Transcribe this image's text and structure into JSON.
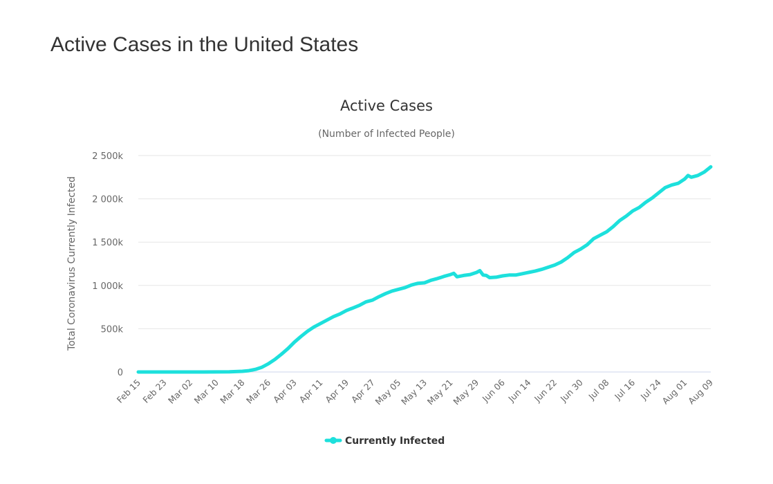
{
  "page_title": "Active Cases in the United States",
  "chart_data": {
    "type": "line",
    "title": "Active Cases",
    "subtitle": "(Number of Infected People)",
    "ylabel": "Total Coronavirus Currently Infected",
    "xlabel": "",
    "x_start": "Feb 15",
    "x_range_days": [
      0,
      176
    ],
    "ylim": [
      0,
      2500000
    ],
    "y_ticks": [
      0,
      500000,
      1000000,
      1500000,
      2000000,
      2500000
    ],
    "y_tick_labels": [
      "0",
      "500k",
      "1 000k",
      "1 500k",
      "2 000k",
      "2 500k"
    ],
    "x_tick_labels": [
      "Feb 15",
      "Feb 23",
      "Mar 02",
      "Mar 10",
      "Mar 18",
      "Mar 26",
      "Apr 03",
      "Apr 11",
      "Apr 19",
      "Apr 27",
      "May 05",
      "May 13",
      "May 21",
      "May 29",
      "Jun 06",
      "Jun 14",
      "Jun 22",
      "Jun 30",
      "Jul 08",
      "Jul 16",
      "Jul 24",
      "Aug 01",
      "Aug 09"
    ],
    "x_tick_interval_days": 8,
    "grid": true,
    "legend_position": "bottom-center",
    "series": [
      {
        "name": "Currently Infected",
        "color": "#1de0dc",
        "days": [
          0,
          4,
          8,
          12,
          16,
          20,
          24,
          28,
          32,
          34,
          36,
          38,
          40,
          42,
          44,
          46,
          48,
          50,
          52,
          54,
          56,
          58,
          60,
          62,
          64,
          66,
          68,
          70,
          72,
          74,
          76,
          78,
          80,
          82,
          84,
          86,
          88,
          90,
          92,
          94,
          96,
          97,
          98,
          100,
          102,
          104,
          105,
          106,
          107,
          108,
          110,
          112,
          114,
          116,
          118,
          120,
          122,
          124,
          126,
          128,
          130,
          132,
          134,
          136,
          138,
          140,
          142,
          144,
          146,
          148,
          150,
          152,
          154,
          156,
          158,
          160,
          162,
          164,
          166,
          168,
          169,
          170,
          172,
          174,
          176
        ],
        "values": [
          0,
          0,
          0,
          0,
          0,
          0,
          500,
          2000,
          8000,
          15000,
          30000,
          55000,
          95000,
          145000,
          205000,
          270000,
          345000,
          410000,
          470000,
          520000,
          560000,
          600000,
          640000,
          670000,
          710000,
          740000,
          770000,
          810000,
          830000,
          870000,
          905000,
          935000,
          955000,
          975000,
          1005000,
          1025000,
          1030000,
          1060000,
          1080000,
          1105000,
          1125000,
          1140000,
          1100000,
          1115000,
          1125000,
          1150000,
          1170000,
          1120000,
          1115000,
          1090000,
          1095000,
          1110000,
          1120000,
          1120000,
          1135000,
          1150000,
          1165000,
          1185000,
          1210000,
          1235000,
          1270000,
          1320000,
          1380000,
          1420000,
          1470000,
          1540000,
          1580000,
          1620000,
          1680000,
          1750000,
          1800000,
          1860000,
          1900000,
          1960000,
          2010000,
          2070000,
          2130000,
          2160000,
          2180000,
          2230000,
          2270000,
          2250000,
          2270000,
          2310000,
          2370000
        ]
      }
    ]
  }
}
